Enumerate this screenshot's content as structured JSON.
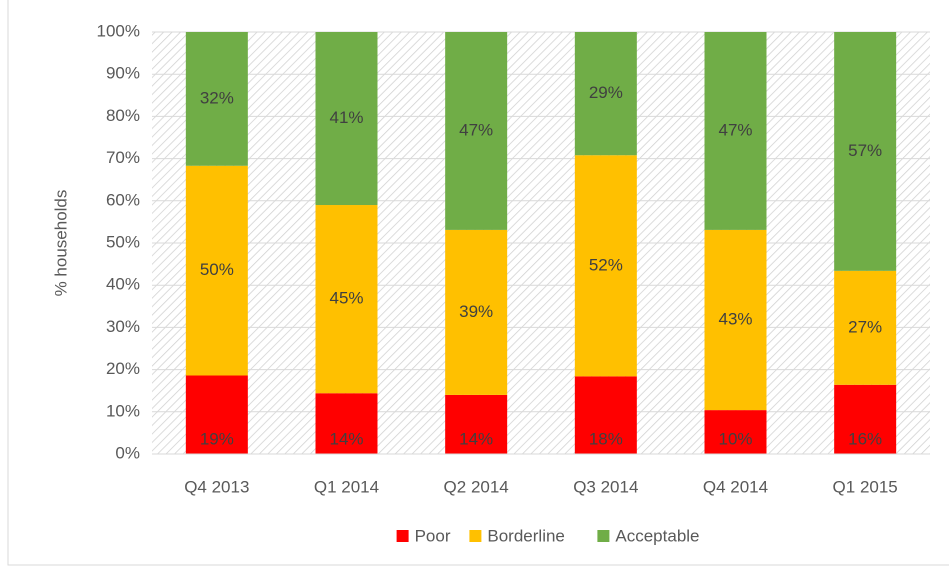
{
  "chart_data": {
    "type": "stacked_bar",
    "categories": [
      "Q4 2013",
      "Q1 2014",
      "Q2 2014",
      "Q3 2014",
      "Q4 2014",
      "Q1 2015"
    ],
    "series": [
      {
        "name": "Poor",
        "color": "#ff0000",
        "values": [
          18.6,
          14.4,
          14.0,
          18.4,
          10.4,
          16.4
        ],
        "value_labels": [
          "19%",
          "14%",
          "14%",
          "18%",
          "10%",
          "16%"
        ]
      },
      {
        "name": "Borderline",
        "color": "#ffc000",
        "values": [
          49.7,
          44.6,
          39.1,
          52.4,
          42.7,
          27.0
        ],
        "value_labels": [
          "50%",
          "45%",
          "39%",
          "52%",
          "43%",
          "27%"
        ]
      },
      {
        "name": "Acceptable",
        "color": "#70ad47",
        "values": [
          31.7,
          41.0,
          46.9,
          29.2,
          46.9,
          56.6
        ],
        "value_labels": [
          "32%",
          "41%",
          "47%",
          "29%",
          "47%",
          "57%"
        ]
      }
    ],
    "y_label": "% households",
    "ylim": [
      0,
      100
    ],
    "yticks": [
      {
        "value": 0,
        "label": "0%"
      },
      {
        "value": 10,
        "label": "10%"
      },
      {
        "value": 20,
        "label": "20%"
      },
      {
        "value": 30,
        "label": "30%"
      },
      {
        "value": 40,
        "label": "40%"
      },
      {
        "value": 50,
        "label": "50%"
      },
      {
        "value": 60,
        "label": "60%"
      },
      {
        "value": 70,
        "label": "70%"
      },
      {
        "value": 80,
        "label": "80%"
      },
      {
        "value": 90,
        "label": "90%"
      },
      {
        "value": 100,
        "label": "100%"
      }
    ],
    "grid": true,
    "legend": "bottom"
  }
}
